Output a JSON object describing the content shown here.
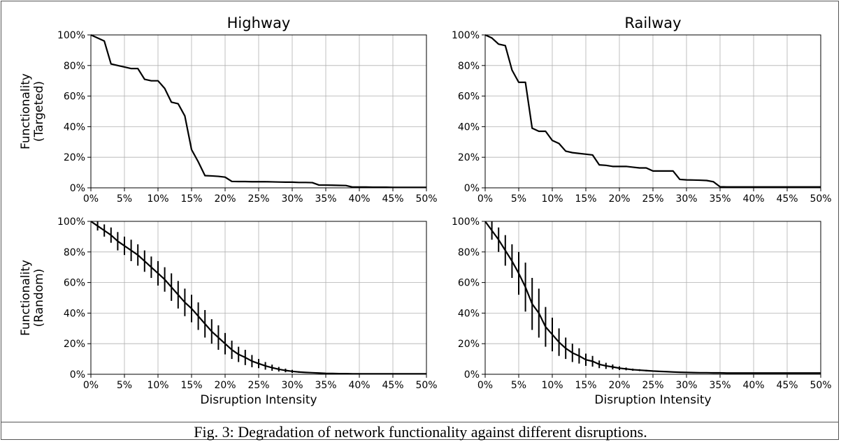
{
  "caption": "Fig. 3: Degradation of network functionality against different disruptions.",
  "colors": {
    "line": "#000000",
    "grid": "#b0b0b0",
    "frame": "#555555"
  },
  "chart_data": [
    {
      "id": "top-left",
      "type": "line",
      "title": "Highway",
      "ylabel": [
        "Functionality",
        "(Targeted)"
      ],
      "xlabel": "",
      "xlim": [
        0,
        50
      ],
      "ylim": [
        0,
        100
      ],
      "grid": true,
      "x_ticks": [
        "0%",
        "5%",
        "10%",
        "15%",
        "20%",
        "25%",
        "30%",
        "35%",
        "40%",
        "45%",
        "50%"
      ],
      "y_ticks": [
        "0%",
        "20%",
        "40%",
        "60%",
        "80%",
        "100%"
      ],
      "series": [
        {
          "x": [
            0,
            1,
            2,
            3,
            4,
            5,
            6,
            7,
            8,
            9,
            10,
            11,
            12,
            13,
            14,
            15,
            16,
            17,
            18,
            19,
            20,
            21,
            22,
            23,
            24,
            25,
            26,
            27,
            28,
            29,
            30,
            31,
            32,
            33,
            34,
            35,
            36,
            37,
            38,
            39,
            40,
            41,
            42,
            43,
            44,
            45,
            46,
            47,
            48,
            49,
            50
          ],
          "y": [
            100,
            98,
            96,
            81,
            80,
            79,
            78,
            78,
            71,
            70,
            70,
            65,
            56,
            55,
            47,
            25,
            17,
            8,
            7.8,
            7.5,
            7,
            4.2,
            4.1,
            4.1,
            4,
            4,
            4,
            3.9,
            3.8,
            3.7,
            3.7,
            3.5,
            3.5,
            3.4,
            1.8,
            1.8,
            1.7,
            1.6,
            1.5,
            0.5,
            0.5,
            0.5,
            0.4,
            0.4,
            0.4,
            0.3,
            0.3,
            0.3,
            0.3,
            0.3,
            0.3
          ]
        }
      ]
    },
    {
      "id": "top-right",
      "type": "line",
      "title": "Railway",
      "ylabel": [],
      "xlabel": "",
      "xlim": [
        0,
        50
      ],
      "ylim": [
        0,
        100
      ],
      "grid": true,
      "x_ticks": [
        "0%",
        "5%",
        "10%",
        "15%",
        "20%",
        "25%",
        "30%",
        "35%",
        "40%",
        "45%",
        "50%"
      ],
      "y_ticks": [
        "0%",
        "20%",
        "40%",
        "60%",
        "80%",
        "100%"
      ],
      "series": [
        {
          "x": [
            0,
            1,
            2,
            3,
            4,
            5,
            6,
            7,
            8,
            9,
            10,
            11,
            12,
            13,
            14,
            15,
            16,
            17,
            18,
            19,
            20,
            21,
            22,
            23,
            24,
            25,
            26,
            27,
            28,
            29,
            30,
            31,
            32,
            33,
            34,
            35,
            36,
            37,
            38,
            39,
            40,
            41,
            42,
            43,
            44,
            45,
            46,
            47,
            48,
            49,
            50
          ],
          "y": [
            100,
            98,
            94,
            93,
            77,
            69,
            69,
            39,
            37,
            37,
            31,
            29,
            24,
            23,
            22.5,
            22,
            21.5,
            15,
            14.7,
            14,
            14,
            14,
            13.5,
            13,
            13,
            11,
            11,
            11,
            11,
            5.5,
            5.2,
            5.1,
            5,
            4.8,
            4,
            0.7,
            0.6,
            0.6,
            0.6,
            0.6,
            0.6,
            0.6,
            0.6,
            0.6,
            0.6,
            0.6,
            0.6,
            0.6,
            0.6,
            0.6,
            0.6
          ]
        }
      ]
    },
    {
      "id": "bottom-left",
      "type": "line",
      "title": "",
      "ylabel": [
        "Functionality",
        "(Random)"
      ],
      "xlabel": "Disruption Intensity",
      "xlim": [
        0,
        50
      ],
      "ylim": [
        0,
        100
      ],
      "grid": true,
      "x_ticks": [
        "0%",
        "5%",
        "10%",
        "15%",
        "20%",
        "25%",
        "30%",
        "35%",
        "40%",
        "45%",
        "50%"
      ],
      "y_ticks": [
        "0%",
        "20%",
        "40%",
        "60%",
        "80%",
        "100%"
      ],
      "series": [
        {
          "x": [
            0,
            1,
            2,
            3,
            4,
            5,
            6,
            7,
            8,
            9,
            10,
            11,
            12,
            13,
            14,
            15,
            16,
            17,
            18,
            19,
            20,
            21,
            22,
            23,
            24,
            25,
            26,
            27,
            28,
            29,
            30,
            31,
            32,
            33,
            34,
            35,
            36,
            37,
            38,
            39,
            40,
            41,
            42,
            43,
            44,
            45,
            46,
            47,
            48,
            49,
            50
          ],
          "y": [
            100,
            97,
            94,
            91,
            87,
            84,
            81,
            78,
            74,
            70,
            66,
            62,
            57,
            52,
            47,
            43,
            38,
            33,
            28,
            24,
            20,
            16,
            13,
            11,
            8.6,
            7,
            5.5,
            4.3,
            3.3,
            2.5,
            1.9,
            1.5,
            1.2,
            1,
            0.8,
            0.6,
            0.5,
            0.4,
            0.4,
            0.3,
            0.3,
            0.3,
            0.3,
            0.3,
            0.3,
            0.3,
            0.3,
            0.3,
            0.3,
            0.3,
            0.3
          ],
          "error": [
            0,
            3,
            4,
            5,
            6,
            6,
            7,
            7,
            7,
            7,
            8,
            8,
            9,
            9,
            9,
            9,
            9,
            9,
            8,
            8,
            7,
            6,
            5,
            5,
            4,
            3,
            2.5,
            2,
            1.5,
            1.2,
            1,
            0.5,
            0.4,
            0.3,
            0.3,
            0.2,
            0.2,
            0.2,
            0.2,
            0.2,
            0.2,
            0.2,
            0.2,
            0.2,
            0.2,
            0.2,
            0.2,
            0.2,
            0.2,
            0.2,
            0.2
          ],
          "error_until": 34
        }
      ]
    },
    {
      "id": "bottom-right",
      "type": "line",
      "title": "",
      "ylabel": [],
      "xlabel": "Disruption Intensity",
      "xlim": [
        0,
        50
      ],
      "ylim": [
        0,
        100
      ],
      "grid": true,
      "x_ticks": [
        "0%",
        "5%",
        "10%",
        "15%",
        "20%",
        "25%",
        "30%",
        "35%",
        "40%",
        "45%",
        "50%"
      ],
      "y_ticks": [
        "0%",
        "20%",
        "40%",
        "60%",
        "80%",
        "100%"
      ],
      "series": [
        {
          "x": [
            0,
            1,
            2,
            3,
            4,
            5,
            6,
            7,
            8,
            9,
            10,
            11,
            12,
            13,
            14,
            15,
            16,
            17,
            18,
            19,
            20,
            21,
            22,
            23,
            24,
            25,
            26,
            27,
            28,
            29,
            30,
            31,
            32,
            33,
            34,
            35,
            36,
            37,
            38,
            39,
            40,
            41,
            42,
            43,
            44,
            45,
            46,
            47,
            48,
            49,
            50
          ],
          "y": [
            100,
            94,
            88,
            81,
            74,
            66,
            57,
            46,
            40,
            31,
            26,
            21,
            17,
            14,
            12,
            9.5,
            8.5,
            6.5,
            5.5,
            4.8,
            4,
            3.5,
            3,
            2.7,
            2.4,
            2.1,
            1.9,
            1.7,
            1.5,
            1.3,
            1.2,
            1.1,
            1,
            1,
            0.9,
            0.9,
            0.8,
            0.8,
            0.8,
            0.8,
            0.8,
            0.8,
            0.8,
            0.8,
            0.8,
            0.8,
            0.8,
            0.8,
            0.8,
            0.8,
            0.8
          ],
          "error": [
            0,
            6,
            8,
            10,
            11,
            14,
            16,
            17,
            16,
            13,
            11,
            9,
            7,
            6,
            5,
            4,
            3.5,
            2.5,
            2,
            1.6,
            1.2,
            0.9,
            0.7,
            0.6,
            0.5,
            0.4,
            0.3,
            0.3,
            0.3,
            0.2,
            0.2,
            0.2,
            0.2,
            0.2,
            0.2,
            0.2,
            0.2,
            0.2,
            0.2,
            0.2,
            0.2,
            0.2,
            0.2,
            0.2,
            0.2,
            0.2,
            0.2,
            0.2,
            0.2,
            0.2,
            0.2
          ],
          "error_until": 28
        }
      ]
    }
  ]
}
